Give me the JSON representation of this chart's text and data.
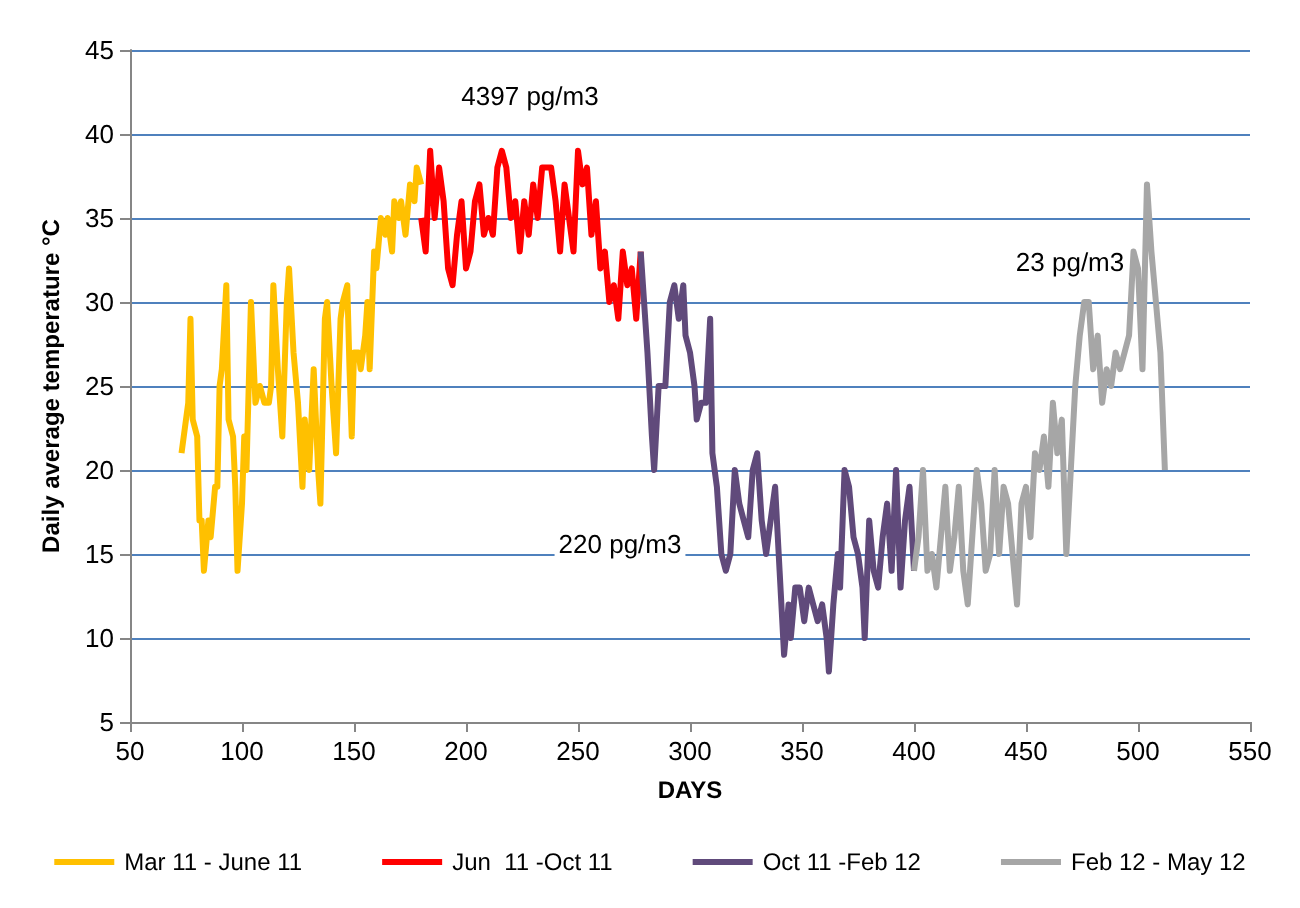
{
  "chart_data": {
    "type": "line",
    "xlabel": "DAYS",
    "ylabel": "Daily average temperature °C",
    "xlim": [
      50,
      550
    ],
    "xticks": [
      50,
      100,
      150,
      200,
      250,
      300,
      350,
      400,
      450,
      500,
      550
    ],
    "ylim": [
      5,
      45
    ],
    "yticks": [
      5,
      10,
      15,
      20,
      25,
      30,
      35,
      40,
      45
    ],
    "grid": "y",
    "legend": "bottom",
    "marker": "none",
    "line_style": "solid",
    "annotations": [
      "4397 pg/m3",
      "220 pg/m3",
      "23 pg/m3"
    ],
    "series": [
      {
        "name": "Mar 11 - June 11",
        "color": "#ffc000",
        "x": [
          73,
          76,
          77,
          78,
          80,
          81,
          82,
          83,
          85,
          86,
          88,
          89,
          90,
          91,
          93,
          94,
          96,
          97,
          98,
          100,
          101,
          102,
          104,
          106,
          108,
          110,
          112,
          113,
          114,
          116,
          118,
          120,
          121,
          123,
          125,
          127,
          128,
          130,
          132,
          134,
          135,
          137,
          138,
          140,
          142,
          144,
          145,
          147,
          148,
          149,
          150,
          152,
          153,
          155,
          156,
          157,
          159,
          160,
          162,
          164,
          165,
          167,
          168,
          170,
          171,
          173,
          175,
          177,
          178,
          180
        ],
        "values": [
          21,
          24,
          29,
          23,
          22,
          17,
          17,
          14,
          17,
          16,
          19,
          19,
          25,
          26,
          31,
          23,
          22,
          19,
          14,
          18,
          22,
          20,
          30,
          24,
          25,
          24,
          24,
          25,
          31,
          26,
          22,
          30,
          32,
          27,
          24,
          19,
          23,
          20,
          26,
          20,
          18,
          29,
          30,
          25,
          21,
          29,
          30,
          31,
          26,
          22,
          27,
          27,
          26,
          28,
          30,
          26,
          33,
          32,
          35,
          34,
          35,
          33,
          36,
          35,
          36,
          34,
          37,
          36,
          38,
          37
        ]
      },
      {
        "name": "Jun  11 -Oct 11",
        "color": "#ff0000",
        "x": [
          180,
          182,
          184,
          186,
          188,
          190,
          192,
          194,
          196,
          198,
          200,
          202,
          204,
          206,
          208,
          210,
          212,
          214,
          216,
          218,
          220,
          222,
          224,
          226,
          228,
          230,
          232,
          234,
          236,
          238,
          240,
          242,
          244,
          246,
          248,
          250,
          252,
          254,
          256,
          258,
          260,
          262,
          264,
          266,
          268,
          270,
          272,
          274,
          276,
          278
        ],
        "values": [
          35,
          33,
          39,
          35,
          38,
          36,
          32,
          31,
          34,
          36,
          32,
          33,
          36,
          37,
          34,
          35,
          34,
          38,
          39,
          38,
          35,
          36,
          33,
          36,
          34,
          37,
          35,
          38,
          38,
          38,
          36,
          33,
          37,
          35,
          33,
          39,
          37,
          38,
          34,
          36,
          32,
          33,
          30,
          31,
          29,
          33,
          31,
          32,
          29,
          33
        ]
      },
      {
        "name": "Oct 11 -Feb 12",
        "color": "#604a7b",
        "x": [
          278,
          281,
          283,
          284,
          286,
          289,
          291,
          293,
          295,
          297,
          298,
          300,
          302,
          303,
          305,
          307,
          309,
          310,
          312,
          314,
          316,
          318,
          320,
          322,
          324,
          326,
          328,
          330,
          332,
          334,
          336,
          338,
          340,
          342,
          344,
          345,
          347,
          349,
          351,
          353,
          355,
          357,
          359,
          361,
          362,
          364,
          366,
          367,
          369,
          371,
          373,
          375,
          377,
          378,
          380,
          382,
          384,
          386,
          388,
          390,
          392,
          394,
          396,
          398,
          400
        ],
        "values": [
          33,
          27,
          22,
          20,
          25,
          25,
          30,
          31,
          29,
          31,
          28,
          27,
          25,
          23,
          24,
          24,
          29,
          21,
          19,
          15,
          14,
          15,
          20,
          18,
          17,
          16,
          20,
          21,
          17,
          15,
          17,
          19,
          14,
          9,
          12,
          10,
          13,
          13,
          11,
          13,
          12,
          11,
          12,
          10,
          8,
          12,
          15,
          13,
          20,
          19,
          16,
          15,
          13,
          10,
          17,
          14,
          13,
          16,
          18,
          14,
          20,
          13,
          17,
          19,
          14
        ]
      },
      {
        "name": "Feb 12 - May 12",
        "color": "#a6a6a6",
        "x": [
          400,
          402,
          404,
          406,
          408,
          410,
          412,
          414,
          416,
          418,
          420,
          422,
          424,
          426,
          428,
          430,
          432,
          434,
          436,
          438,
          440,
          442,
          444,
          446,
          448,
          450,
          452,
          454,
          456,
          458,
          460,
          462,
          464,
          466,
          468,
          470,
          472,
          474,
          476,
          478,
          480,
          482,
          484,
          486,
          488,
          490,
          492,
          494,
          496,
          498,
          500,
          502,
          504,
          506,
          508,
          510,
          512
        ],
        "values": [
          14,
          16,
          20,
          14,
          15,
          13,
          16,
          19,
          14,
          16,
          19,
          14,
          12,
          16,
          20,
          18,
          14,
          15,
          20,
          15,
          19,
          18,
          15,
          12,
          18,
          19,
          16,
          21,
          20,
          22,
          19,
          24,
          21,
          23,
          15,
          20,
          25,
          28,
          30,
          30,
          26,
          28,
          24,
          26,
          25,
          27,
          26,
          27,
          28,
          33,
          32,
          26,
          37,
          33,
          30,
          27,
          20
        ]
      }
    ]
  }
}
